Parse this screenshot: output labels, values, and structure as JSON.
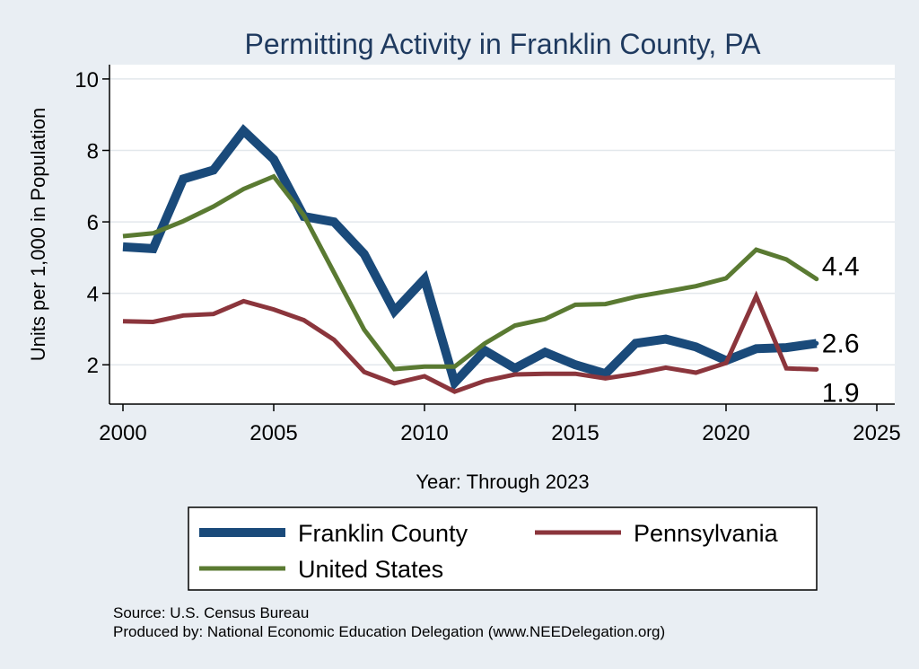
{
  "chart_data": {
    "type": "line",
    "title": "Permitting Activity in Franklin County, PA",
    "xlabel": "Year: Through 2023",
    "ylabel": "Units per 1,000 in Population",
    "xlim": [
      2000,
      2025
    ],
    "ylim": [
      0.9,
      10.4
    ],
    "xticks": [
      2000,
      2005,
      2010,
      2015,
      2020,
      2025
    ],
    "yticks": [
      2,
      4,
      6,
      8,
      10
    ],
    "x": [
      2000,
      2001,
      2002,
      2003,
      2004,
      2005,
      2006,
      2007,
      2008,
      2009,
      2010,
      2011,
      2012,
      2013,
      2014,
      2015,
      2016,
      2017,
      2018,
      2019,
      2020,
      2021,
      2022,
      2023
    ],
    "series": [
      {
        "name": "Franklin County",
        "color": "#1a4a7a",
        "values": [
          5.3,
          5.25,
          7.2,
          7.45,
          8.55,
          7.75,
          6.15,
          6.0,
          5.1,
          3.5,
          4.4,
          1.5,
          2.4,
          1.9,
          2.35,
          2.0,
          1.75,
          2.6,
          2.72,
          2.5,
          2.12,
          2.45,
          2.48,
          2.6
        ],
        "end_label": "2.6"
      },
      {
        "name": "Pennsylvania",
        "color": "#8b353c",
        "values": [
          3.22,
          3.2,
          3.38,
          3.42,
          3.78,
          3.55,
          3.25,
          2.7,
          1.8,
          1.48,
          1.68,
          1.25,
          1.55,
          1.73,
          1.75,
          1.75,
          1.62,
          1.75,
          1.92,
          1.78,
          2.05,
          3.92,
          1.9,
          1.87
        ],
        "end_label": "1.9"
      },
      {
        "name": "United States",
        "color": "#5a7a32",
        "values": [
          5.6,
          5.68,
          6.02,
          6.43,
          6.92,
          7.27,
          6.18,
          4.58,
          2.98,
          1.88,
          1.95,
          1.95,
          2.6,
          3.1,
          3.28,
          3.68,
          3.7,
          3.9,
          4.05,
          4.2,
          4.42,
          5.22,
          4.95,
          4.4
        ],
        "end_label": "4.4"
      }
    ],
    "legend_position": "bottom"
  },
  "footer": {
    "source": "Source: U.S. Census Bureau",
    "produced_by": "Produced by: National Economic Education Delegation (www.NEEDelegation.org)"
  }
}
